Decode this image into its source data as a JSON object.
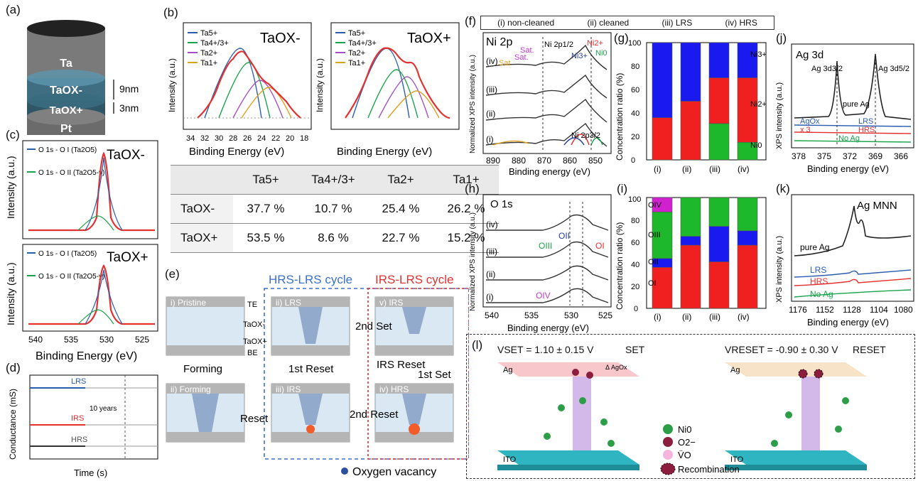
{
  "panels": {
    "a": "(a)",
    "b": "(b)",
    "c": "(c)",
    "d": "(d)",
    "e": "(e)",
    "f": "(f)",
    "g": "(g)",
    "h": "(h)",
    "i": "(i)",
    "j": "(j)",
    "k": "(k)",
    "l": "(l)"
  },
  "a": {
    "layers": [
      "Ta",
      "TaOX-",
      "TaOX+",
      "Pt"
    ],
    "thick": [
      "9nm",
      "3nm"
    ]
  },
  "b": {
    "ylabel": "Intensity (a.u.)",
    "xlabel": "Binding Energy (eV)",
    "ticks": [
      "34",
      "32",
      "30",
      "28",
      "26",
      "24",
      "22",
      "20",
      "18"
    ],
    "legend": [
      "Ta5+",
      "Ta4+/3+",
      "Ta2+",
      "Ta1+"
    ],
    "titles": [
      "TaOX-",
      "TaOX+"
    ],
    "table": {
      "cols": [
        "Ta5+",
        "Ta4+/3+",
        "Ta2+",
        "Ta1+"
      ],
      "rows": [
        {
          "name": "TaOX-",
          "vals": [
            "37.7 %",
            "10.7 %",
            "25.4 %",
            "26.2 %"
          ]
        },
        {
          "name": "TaOX+",
          "vals": [
            "53.5 %",
            "8.6 %",
            "22.7 %",
            "15.2 %"
          ]
        }
      ]
    }
  },
  "c": {
    "ylabel": "Intensity (a.u.)",
    "xlabel": "Binding Energy (eV)",
    "ticks": [
      "540",
      "535",
      "530",
      "525"
    ],
    "legend1": "O 1s - O I (Ta2O5)",
    "legend2": "O 1s - O II (Ta2O5-y)",
    "titles": [
      "TaOX-",
      "TaOX+"
    ]
  },
  "d": {
    "ylabel": "Conductance (mS)",
    "xlabel": "Time (s)",
    "states": [
      "LRS",
      "IRS",
      "HRS"
    ],
    "note": "10 years"
  },
  "e": {
    "cycle_hrs": "HRS-LRS cycle",
    "cycle_irs": "IRS-LRS cycle",
    "states": [
      "i) Pristine",
      "ii) LRS",
      "v) IRS",
      "ii) Forming",
      "iii) IRS",
      "iv) HRS"
    ],
    "layers": [
      "TE",
      "TaOX-",
      "TaOX+",
      "BE"
    ],
    "steps": [
      "Forming",
      "1st Reset",
      "2nd Set",
      "IRS Reset",
      "1st Set",
      "Reset",
      "2nd Reset"
    ],
    "legend": "Oxygen vacancy"
  },
  "f": {
    "header": [
      "(i) non-cleaned",
      "(ii) cleaned",
      "(iii) LRS",
      "(iv) HRS"
    ],
    "title": "Ni 2p",
    "ylabel": "Normalized XPS intensity (a.u.)",
    "xlabel": "Binding energy (eV)",
    "ticks": [
      "890",
      "880",
      "870",
      "860",
      "850"
    ],
    "rows": [
      "(iv)",
      "(iii)",
      "(ii)",
      "(i)"
    ],
    "annotations": [
      "Sat.",
      "Sat.",
      "Sat",
      "Ni 2p1/2",
      "Ni3+",
      "Ni2+",
      "Ni0",
      "Ni 2p3/2"
    ]
  },
  "g": {
    "ylabel": "Concentration ratio (%)",
    "yticks": [
      "0",
      "20",
      "40",
      "60",
      "80",
      "100"
    ],
    "cats": [
      "(i)",
      "(ii)",
      "(iii)",
      "(iv)"
    ],
    "labels": [
      "Ni3+",
      "Ni2+",
      "Ni0"
    ]
  },
  "h": {
    "title": "O 1s",
    "ylabel": "Normalized XPS intensity (a.u.)",
    "xlabel": "Binding energy (eV)",
    "ticks": [
      "540",
      "535",
      "530",
      "525"
    ],
    "rows": [
      "(iv)",
      "(iii)",
      "(ii)",
      "(i)"
    ],
    "annotations": [
      "OII",
      "OIII",
      "OI",
      "OIV"
    ]
  },
  "i": {
    "ylabel": "Concentration ratio (%)",
    "yticks": [
      "0",
      "20",
      "40",
      "60",
      "80",
      "100"
    ],
    "cats": [
      "(i)",
      "(ii)",
      "(iii)",
      "(iv)"
    ],
    "labels": [
      "OIV",
      "OIII",
      "OII",
      "OI"
    ]
  },
  "j": {
    "title": "Ag 3d",
    "ylabel": "XPS intensity (a.u.)",
    "xlabel": "Binding energy (eV)",
    "ticks": [
      "378",
      "375",
      "372",
      "369",
      "366"
    ],
    "peaks": [
      "Ag 3d3/2",
      "Ag 3d5/2"
    ],
    "traces": [
      "pure Ag",
      "AgOx",
      "LRS",
      "x 3",
      "HRS",
      "No Ag"
    ]
  },
  "k": {
    "title": "Ag MNN",
    "ylabel": "XPS intensity (a.u.)",
    "xlabel": "Binding energy (eV)",
    "ticks": [
      "1176",
      "1152",
      "1128",
      "1104",
      "1080"
    ],
    "traces": [
      "pure Ag",
      "LRS",
      "HRS",
      "No Ag"
    ]
  },
  "l": {
    "vset": "VSET = 1.10 ± 0.15 V",
    "vreset": "VRESET = -0.90 ± 0.30 V",
    "set": "SET",
    "reset": "RESET",
    "top": "Ag",
    "bottom": "ITO",
    "delta": "Δ AgOx",
    "legend": [
      "Ni0",
      "O2−",
      "V̈O",
      "Recombination"
    ]
  }
}
